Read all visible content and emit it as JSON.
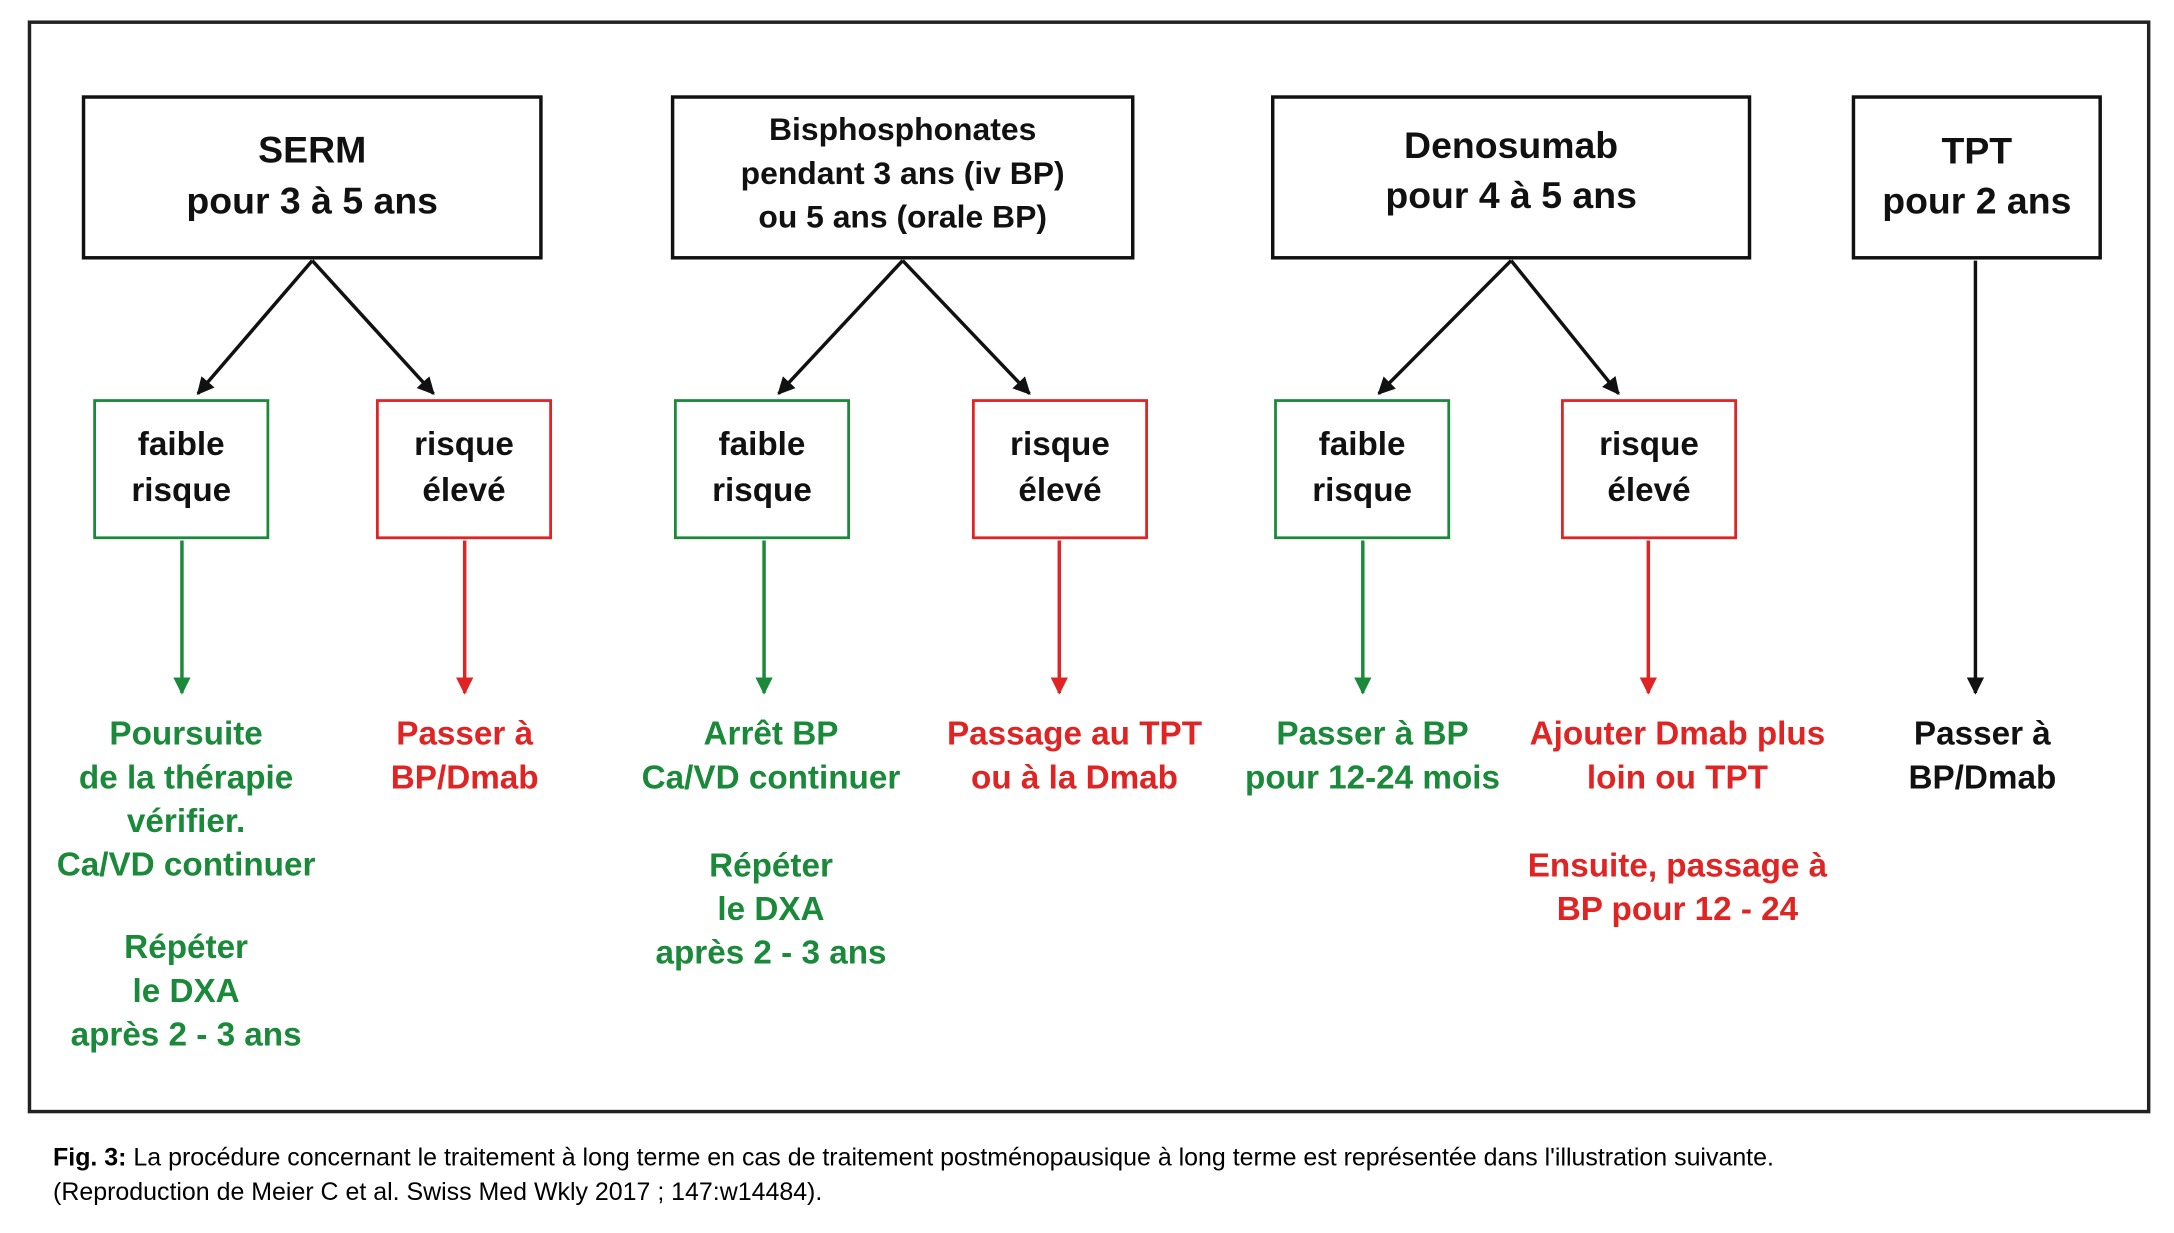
{
  "columns": [
    {
      "header": [
        "SERM",
        "pour 3 à 5 ans"
      ],
      "low_risk": [
        "faible",
        "risque"
      ],
      "high_risk": [
        "risque",
        "élevé"
      ],
      "low_action": [
        [
          "Poursuite",
          "de la thérapie",
          "vérifier.",
          "Ca/VD continuer"
        ],
        [
          "Répéter",
          "le DXA",
          "après 2 - 3 ans"
        ]
      ],
      "high_action": [
        [
          "Passer à",
          "BP/Dmab"
        ]
      ]
    },
    {
      "header": [
        "Bisphosphonates",
        "pendant 3 ans (iv BP)",
        "ou 5 ans (orale BP)"
      ],
      "low_risk": [
        "faible",
        "risque"
      ],
      "high_risk": [
        "risque",
        "élevé"
      ],
      "low_action": [
        [
          "Arrêt BP",
          "Ca/VD continuer"
        ],
        [
          "Répéter",
          "le DXA",
          "après 2 - 3 ans"
        ]
      ],
      "high_action": [
        [
          "Passage au TPT",
          "ou à la Dmab"
        ]
      ]
    },
    {
      "header": [
        "Denosumab",
        "pour 4 à 5 ans"
      ],
      "low_risk": [
        "faible",
        "risque"
      ],
      "high_risk": [
        "risque",
        "élevé"
      ],
      "low_action": [
        [
          "Passer à BP",
          "pour 12-24 mois"
        ]
      ],
      "high_action": [
        [
          "Ajouter Dmab plus",
          "loin ou TPT"
        ],
        [
          "Ensuite, passage à",
          "BP pour 12 - 24"
        ]
      ]
    }
  ],
  "tpt": {
    "header": [
      "TPT",
      "pour 2 ans"
    ],
    "action": [
      "Passer à",
      "BP/Dmab"
    ]
  },
  "caption": {
    "label": "Fig. 3:",
    "text": "La procédure concernant le traitement à long terme en cas de traitement postménopausique à long terme est représentée dans l'illustration suivante.",
    "source": "(Reproduction de Meier C et al. Swiss Med Wkly 2017 ; 147:w14484)."
  }
}
